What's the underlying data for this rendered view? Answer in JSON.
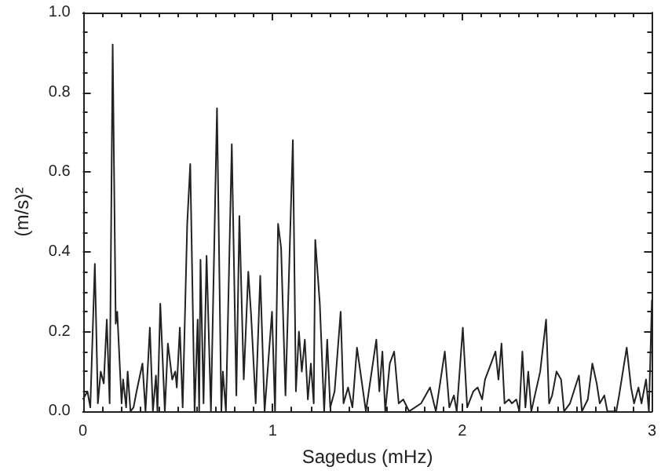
{
  "chart_data": {
    "type": "line",
    "xlabel": "Sagedus (mHz)",
    "ylabel": "(m/s)²",
    "xlim": [
      0,
      3
    ],
    "ylim": [
      0,
      1
    ],
    "xticks": [
      0,
      1,
      2,
      3
    ],
    "yticks": [
      {
        "value": 0,
        "label": "0.0"
      },
      {
        "value": 0.2,
        "label": "0.2"
      },
      {
        "value": 0.4,
        "label": "0.4"
      },
      {
        "value": 0.6,
        "label": "0.6"
      },
      {
        "value": 0.8,
        "label": "0.8"
      },
      {
        "value": 1,
        "label": "1.0"
      }
    ],
    "grid": false,
    "marker": "none",
    "line_style": "solid",
    "series": [
      {
        "color": "#222222",
        "x": [
          0,
          0.024,
          0.039,
          0.063,
          0.079,
          0.094,
          0.11,
          0.126,
          0.141,
          0.157,
          0.173,
          0.181,
          0.204,
          0.212,
          0.228,
          0.236,
          0.251,
          0.267,
          0.283,
          0.314,
          0.33,
          0.353,
          0.369,
          0.385,
          0.393,
          0.408,
          0.432,
          0.448,
          0.471,
          0.487,
          0.495,
          0.511,
          0.526,
          0.55,
          0.566,
          0.589,
          0.605,
          0.613,
          0.62,
          0.636,
          0.652,
          0.675,
          0.707,
          0.73,
          0.738,
          0.754,
          0.785,
          0.809,
          0.825,
          0.848,
          0.872,
          0.887,
          0.911,
          0.935,
          0.958,
          0.997,
          1.013,
          1.029,
          1.045,
          1.068,
          1.107,
          1.123,
          1.139,
          1.154,
          1.17,
          1.186,
          1.202,
          1.217,
          1.225,
          1.249,
          1.272,
          1.288,
          1.304,
          1.327,
          1.359,
          1.374,
          1.398,
          1.421,
          1.445,
          1.492,
          1.547,
          1.563,
          1.579,
          1.594,
          1.618,
          1.641,
          1.665,
          1.689,
          1.72,
          1.783,
          1.83,
          1.861,
          1.908,
          1.932,
          1.956,
          1.971,
          2.003,
          2.026,
          2.058,
          2.081,
          2.105,
          2.12,
          2.152,
          2.175,
          2.191,
          2.207,
          2.223,
          2.246,
          2.262,
          2.285,
          2.301,
          2.317,
          2.333,
          2.348,
          2.364,
          2.411,
          2.442,
          2.458,
          2.474,
          2.497,
          2.521,
          2.537,
          2.568,
          2.615,
          2.631,
          2.662,
          2.686,
          2.709,
          2.725,
          2.749,
          2.765,
          2.812,
          2.827,
          2.867,
          2.89,
          2.906,
          2.929,
          2.945,
          2.969,
          2.984,
          3
        ],
        "values": [
          0.03,
          0.05,
          0.01,
          0.37,
          0.02,
          0.1,
          0.07,
          0.23,
          0.02,
          0.92,
          0.22,
          0.25,
          0.02,
          0.08,
          0.01,
          0.1,
          0,
          0.01,
          0.05,
          0.12,
          0,
          0.21,
          0,
          0.09,
          0,
          0.27,
          0,
          0.17,
          0.08,
          0.1,
          0.06,
          0.21,
          0.01,
          0.47,
          0.62,
          0,
          0.23,
          0,
          0.38,
          0.02,
          0.39,
          0,
          0.76,
          0,
          0.1,
          0,
          0.67,
          0.04,
          0.49,
          0.08,
          0.35,
          0.24,
          0.02,
          0.34,
          0,
          0.25,
          0,
          0.47,
          0.41,
          0.04,
          0.68,
          0.05,
          0.2,
          0.1,
          0.18,
          0.03,
          0.12,
          0.02,
          0.43,
          0.27,
          0,
          0.18,
          0.01,
          0.05,
          0.25,
          0.02,
          0.06,
          0.01,
          0.16,
          0,
          0.18,
          0.05,
          0.15,
          0,
          0.12,
          0.15,
          0.02,
          0.03,
          0,
          0.02,
          0.06,
          0,
          0.15,
          0.01,
          0.04,
          0,
          0.21,
          0.01,
          0.05,
          0.06,
          0.03,
          0.08,
          0.12,
          0.15,
          0.08,
          0.17,
          0.02,
          0.03,
          0.02,
          0.03,
          0,
          0.15,
          0.01,
          0.1,
          0,
          0.1,
          0.23,
          0.02,
          0.04,
          0.1,
          0.08,
          0,
          0.02,
          0.09,
          0,
          0.03,
          0.12,
          0.07,
          0.02,
          0.04,
          0,
          0,
          0.04,
          0.16,
          0.06,
          0.02,
          0.06,
          0.02,
          0.08,
          0,
          0.28
        ]
      }
    ]
  }
}
